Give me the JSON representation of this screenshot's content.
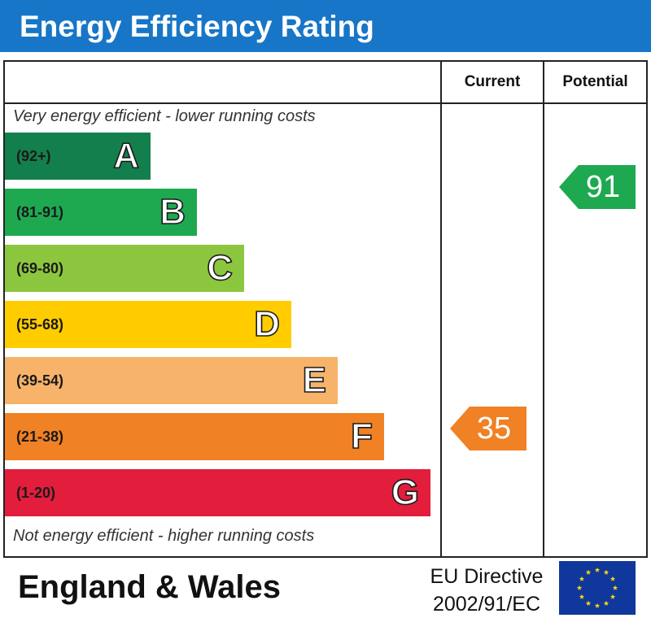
{
  "header": {
    "title": "Energy Efficiency Rating"
  },
  "columns": {
    "current": "Current",
    "potential": "Potential"
  },
  "notes": {
    "top": "Very energy efficient - lower running costs",
    "bottom": "Not energy efficient - higher running costs"
  },
  "chart_data": {
    "type": "bar",
    "title": "Energy Efficiency Rating",
    "bands": [
      {
        "range": "(92+)",
        "letter": "A",
        "color": "#137f4c"
      },
      {
        "range": "(81-91)",
        "letter": "B",
        "color": "#1ea950"
      },
      {
        "range": "(69-80)",
        "letter": "C",
        "color": "#8cc63f"
      },
      {
        "range": "(55-68)",
        "letter": "D",
        "color": "#ffcc00"
      },
      {
        "range": "(39-54)",
        "letter": "E",
        "color": "#f7b36a"
      },
      {
        "range": "(21-38)",
        "letter": "F",
        "color": "#f08124"
      },
      {
        "range": "(1-20)",
        "letter": "G",
        "color": "#e31d3c"
      }
    ],
    "current": {
      "value": 35,
      "band": "F",
      "color": "#f08124"
    },
    "potential": {
      "value": 91,
      "band": "B",
      "color": "#1ea950"
    }
  },
  "footer": {
    "region": "England & Wales",
    "directive_line1": "EU Directive",
    "directive_line2": "2002/91/EC",
    "flag": "eu-flag-icon"
  }
}
